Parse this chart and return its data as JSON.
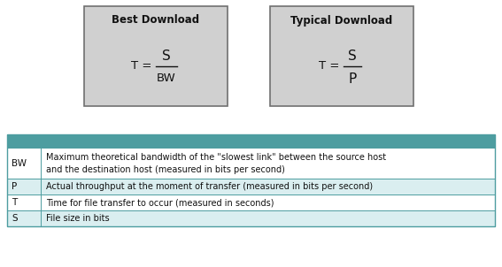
{
  "bg_color": "#ffffff",
  "box_fill": "#d0d0d0",
  "box_edge": "#707070",
  "box1_title": "Best Download",
  "box2_title": "Typical Download",
  "table_header_color": "#4d9da0",
  "table_row_color_odd": "#ffffff",
  "table_row_color_even": "#daeef0",
  "table_border_color": "#4d9da0",
  "table_rows": [
    [
      "BW",
      "Maximum theoretical bandwidth of the \"slowest link\" between the source host\nand the destination host (measured in bits per second)"
    ],
    [
      "P",
      "Actual throughput at the moment of transfer (measured in bits per second)"
    ],
    [
      "T",
      "Time for file transfer to occur (measured in seconds)"
    ],
    [
      "S",
      "File size in bits"
    ]
  ]
}
